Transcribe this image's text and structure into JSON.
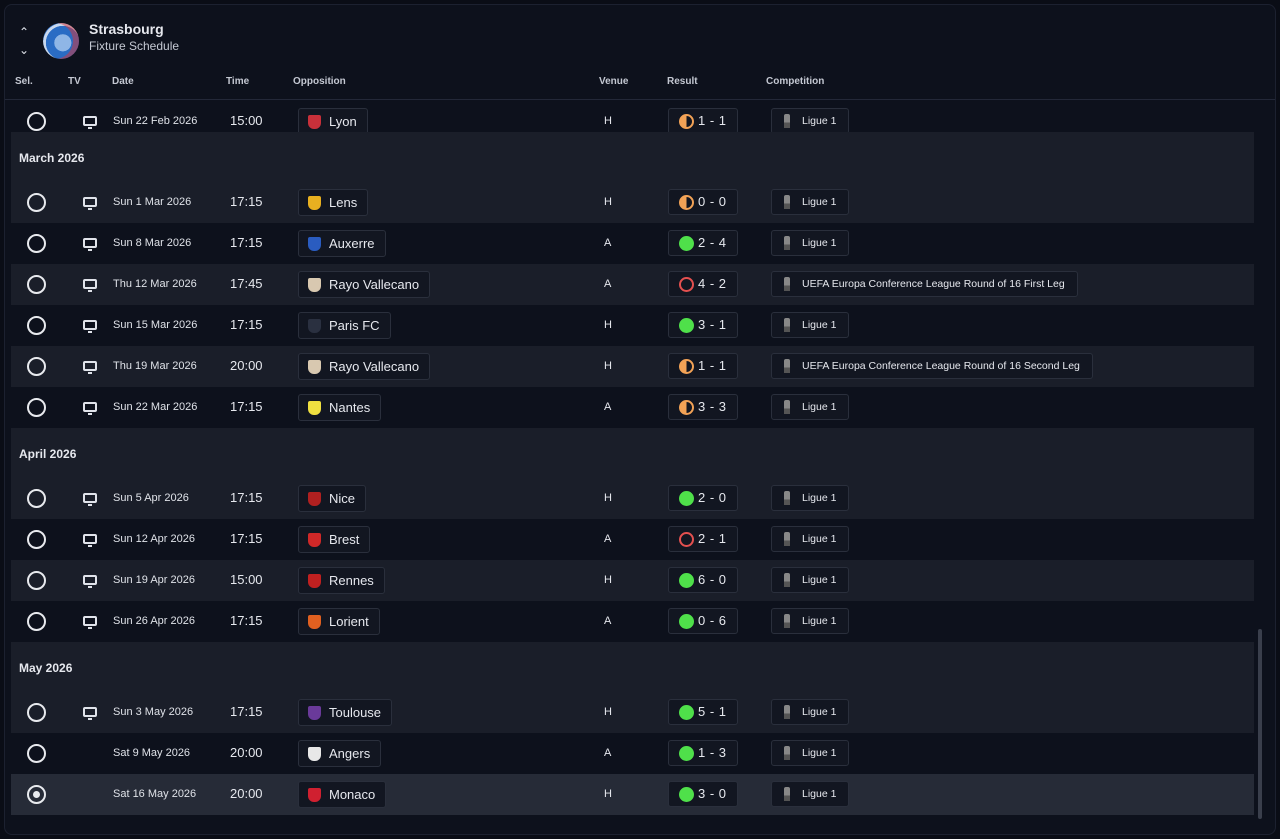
{
  "header": {
    "team": "Strasbourg",
    "subtitle": "Fixture Schedule",
    "up_icon": "chevron-up-icon",
    "down_icon": "chevron-down-icon"
  },
  "columns": {
    "sel": "Sel.",
    "tv": "TV",
    "date": "Date",
    "time": "Time",
    "opposition": "Opposition",
    "venue": "Venue",
    "result": "Result",
    "competition": "Competition"
  },
  "colors": {
    "win": "#4fe04a",
    "draw": "#f2a256",
    "loss": "#e4504f"
  },
  "groups": [
    {
      "label": "",
      "fixtures": [
        {
          "date": "Sun 22 Feb 2026",
          "time": "15:00",
          "opp": "Lyon",
          "color": "#c8303a",
          "venue": "H",
          "res": "D",
          "score": "1 - 1",
          "comp": "Ligue 1",
          "tv": true,
          "selected": false
        }
      ]
    },
    {
      "label": "March 2026",
      "fixtures": [
        {
          "date": "Sun 1 Mar 2026",
          "time": "17:15",
          "opp": "Lens",
          "color": "#e8b020",
          "venue": "H",
          "res": "D",
          "score": "0 - 0",
          "comp": "Ligue 1",
          "tv": true,
          "selected": false
        },
        {
          "date": "Sun 8 Mar 2026",
          "time": "17:15",
          "opp": "Auxerre",
          "color": "#2a5cc0",
          "venue": "A",
          "res": "W",
          "score": "2 - 4",
          "comp": "Ligue 1",
          "tv": true,
          "selected": false
        },
        {
          "date": "Thu 12 Mar 2026",
          "time": "17:45",
          "opp": "Rayo Vallecano",
          "color": "#d8c8b0",
          "venue": "A",
          "res": "L",
          "score": "4 - 2",
          "comp": "UEFA Europa Conference League Round of 16  First Leg",
          "tv": true,
          "selected": false
        },
        {
          "date": "Sun 15 Mar 2026",
          "time": "17:15",
          "opp": "Paris FC",
          "color": "#2a3040",
          "venue": "H",
          "res": "W",
          "score": "3 - 1",
          "comp": "Ligue 1",
          "tv": true,
          "selected": false
        },
        {
          "date": "Thu 19 Mar 2026",
          "time": "20:00",
          "opp": "Rayo Vallecano",
          "color": "#d8c8b0",
          "venue": "H",
          "res": "D",
          "score": "1 - 1",
          "comp": "UEFA Europa Conference League Round of 16  Second Leg",
          "tv": true,
          "selected": false
        },
        {
          "date": "Sun 22 Mar 2026",
          "time": "17:15",
          "opp": "Nantes",
          "color": "#f0e040",
          "venue": "A",
          "res": "D",
          "score": "3 - 3",
          "comp": "Ligue 1",
          "tv": true,
          "selected": false
        }
      ]
    },
    {
      "label": "April 2026",
      "fixtures": [
        {
          "date": "Sun 5 Apr 2026",
          "time": "17:15",
          "opp": "Nice",
          "color": "#b02020",
          "venue": "H",
          "res": "W",
          "score": "2 - 0",
          "comp": "Ligue 1",
          "tv": true,
          "selected": false
        },
        {
          "date": "Sun 12 Apr 2026",
          "time": "17:15",
          "opp": "Brest",
          "color": "#d02828",
          "venue": "A",
          "res": "L",
          "score": "2 - 1",
          "comp": "Ligue 1",
          "tv": true,
          "selected": false
        },
        {
          "date": "Sun 19 Apr 2026",
          "time": "15:00",
          "opp": "Rennes",
          "color": "#c02020",
          "venue": "H",
          "res": "W",
          "score": "6 - 0",
          "comp": "Ligue 1",
          "tv": true,
          "selected": false
        },
        {
          "date": "Sun 26 Apr 2026",
          "time": "17:15",
          "opp": "Lorient",
          "color": "#e06020",
          "venue": "A",
          "res": "W",
          "score": "0 - 6",
          "comp": "Ligue 1",
          "tv": true,
          "selected": false
        }
      ]
    },
    {
      "label": "May 2026",
      "fixtures": [
        {
          "date": "Sun 3 May 2026",
          "time": "17:15",
          "opp": "Toulouse",
          "color": "#6a3a9a",
          "venue": "H",
          "res": "W",
          "score": "5 - 1",
          "comp": "Ligue 1",
          "tv": true,
          "selected": false
        },
        {
          "date": "Sat 9 May 2026",
          "time": "20:00",
          "opp": "Angers",
          "color": "#e8e8e8",
          "venue": "A",
          "res": "W",
          "score": "1 - 3",
          "comp": "Ligue 1",
          "tv": false,
          "selected": false
        },
        {
          "date": "Sat 16 May 2026",
          "time": "20:00",
          "opp": "Monaco",
          "color": "#d02030",
          "venue": "H",
          "res": "W",
          "score": "3 - 0",
          "comp": "Ligue 1",
          "tv": false,
          "selected": true
        }
      ]
    }
  ]
}
